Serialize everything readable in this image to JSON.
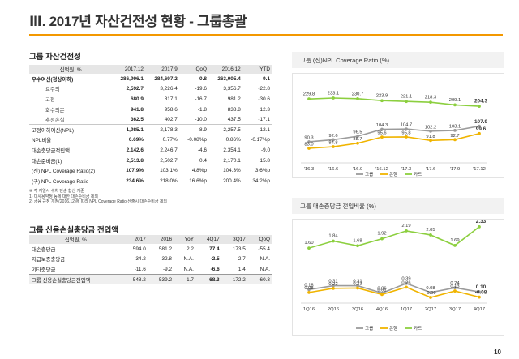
{
  "page": {
    "title": "Ⅲ. 2017년 자산건전성 현황 - 그룹총괄",
    "page_number": "10"
  },
  "colors": {
    "accent": "#f39800",
    "gray": "#9b9b9b",
    "yellow": "#f0b400",
    "green": "#8ccf3f"
  },
  "asset_table": {
    "title": "그룹 자산건전성",
    "headers": [
      "십억원, %",
      "2017.12",
      "2017.9",
      "QoQ",
      "2016.12",
      "YTD"
    ],
    "rows": [
      {
        "cells": [
          "우수여신(정상이하)",
          "286,996.1",
          "284,697.2",
          "0.8",
          "263,005.4",
          "9.1"
        ],
        "style": "bold"
      },
      {
        "cells": [
          "요주의",
          "2,592.7",
          "3,226.4",
          "-19.6",
          "3,356.7",
          "-22.8"
        ],
        "style": "sub"
      },
      {
        "cells": [
          "고정",
          "680.9",
          "817.1",
          "-16.7",
          "981.2",
          "-30.6"
        ],
        "style": "sub"
      },
      {
        "cells": [
          "회수의문",
          "941.8",
          "958.6",
          "-1.8",
          "838.8",
          "12.3"
        ],
        "style": "sub"
      },
      {
        "cells": [
          "추정손실",
          "362.5",
          "402.7",
          "-10.0",
          "437.5",
          "-17.1"
        ],
        "style": "sub"
      },
      {
        "cells": [
          "고정이하여신(NPL)",
          "1,985.1",
          "2,178.3",
          "-8.9",
          "2,257.5",
          "-12.1"
        ],
        "style": "sep"
      },
      {
        "cells": [
          "NPL비율",
          "0.69%",
          "0.77%",
          "-0.08%p",
          "0.86%",
          "-0.17%p"
        ],
        "style": ""
      },
      {
        "cells": [
          "대손충당금적립액",
          "2,142.6",
          "2,246.7",
          "-4.6",
          "2,354.1",
          "-9.0"
        ],
        "style": ""
      },
      {
        "cells": [
          "대손준비금(1)",
          "2,513.8",
          "2,502.7",
          "0.4",
          "2,170.1",
          "15.8"
        ],
        "style": ""
      },
      {
        "cells": [
          "(신) NPL Coverage Ratio(2)",
          "107.9%",
          "103.1%",
          "4.8%p",
          "104.3%",
          "3.6%p"
        ],
        "style": ""
      },
      {
        "cells": [
          "(구) NPL Coverage Ratio",
          "234.6%",
          "218.0%",
          "16.6%p",
          "200.4%",
          "34.2%p"
        ],
        "style": ""
      }
    ],
    "notes": [
      "※ 각 계열사 수치 단순 합산 기준",
      "1) 미사용약정 등에 대한 대손준비금 제외",
      "2) 금융 규정 개정(2016.12)에 따라 NPL Coverage Ratio 산출시 대손준비금 제외"
    ]
  },
  "credit_table": {
    "title": "그룹 신용손실충당금 전입액",
    "headers": [
      "십억원, %",
      "2017",
      "2016",
      "YoY",
      "4Q17",
      "3Q17",
      "QoQ"
    ],
    "rows": [
      {
        "cells": [
          "대손충당금",
          "594.0",
          "581.2",
          "2.2",
          "77.4",
          "173.5",
          "-55.4"
        ],
        "style": ""
      },
      {
        "cells": [
          "지급보증충당금",
          "-34.2",
          "-32.8",
          "N.A.",
          "-2.5",
          "-2.7",
          "N.A."
        ],
        "style": ""
      },
      {
        "cells": [
          "기타충당금",
          "-11.6",
          "-9.2",
          "N.A.",
          "-6.6",
          "1.4",
          "N.A."
        ],
        "style": ""
      },
      {
        "cells": [
          "그룹 신용손실충당금전입액",
          "548.2",
          "539.2",
          "1.7",
          "68.3",
          "172.2",
          "-60.3"
        ],
        "style": "total"
      }
    ]
  },
  "chart_data": [
    {
      "type": "line",
      "title": "그룹 (신)NPL Coverage Ratio (%)",
      "categories": [
        "'16.3",
        "'16.6",
        "'16.9",
        "'16.12",
        "'17.3",
        "'17.6",
        "'17.9",
        "'17.12"
      ],
      "series": [
        {
          "name": "그룹",
          "values": [
            90.3,
            92.6,
            96.5,
            104.3,
            104.7,
            102.2,
            103.1,
            107.9
          ]
        },
        {
          "name": "은행",
          "values": [
            83.0,
            84.8,
            88.7,
            95.6,
            95.8,
            91.8,
            92.7,
            99.6
          ]
        },
        {
          "name": "카드",
          "values": [
            229.8,
            233.1,
            230.7,
            223.9,
            221.1,
            218.3,
            209.1,
            204.3
          ]
        }
      ],
      "legend": [
        "그룹",
        "은행",
        "카드"
      ]
    },
    {
      "type": "line",
      "title": "그룹 대손충당금 전입비율 (%)",
      "categories": [
        "1Q16",
        "2Q16",
        "3Q16",
        "4Q16",
        "1Q17",
        "2Q17",
        "3Q17",
        "4Q17"
      ],
      "series": [
        {
          "name": "그룹",
          "values": [
            0.18,
            0.31,
            0.31,
            0.06,
            0.39,
            0.08,
            0.24,
            0.1
          ]
        },
        {
          "name": "은행",
          "values": [
            0.08,
            0.22,
            0.23,
            0.01,
            0.26,
            -0.09,
            0.13,
            -0.08
          ]
        },
        {
          "name": "카드",
          "values": [
            1.6,
            1.84,
            1.68,
            1.92,
            2.19,
            2.05,
            1.69,
            2.33
          ]
        }
      ],
      "legend": [
        "그룹",
        "은행",
        "카드"
      ]
    }
  ]
}
